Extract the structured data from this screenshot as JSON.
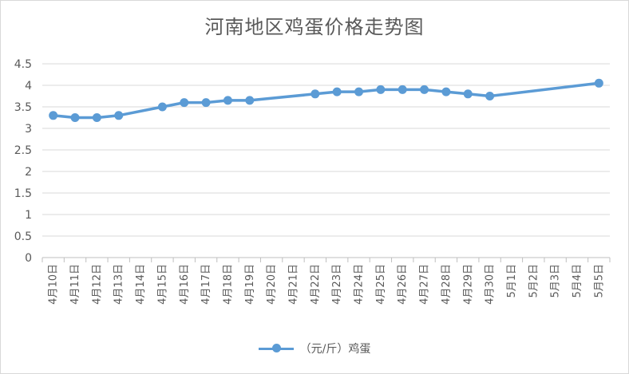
{
  "chart_data": {
    "type": "line",
    "title": "河南地区鸡蛋价格走势图",
    "categories": [
      "4月10日",
      "4月11日",
      "4月12日",
      "4月13日",
      "4月14日",
      "4月15日",
      "4月16日",
      "4月17日",
      "4月18日",
      "4月19日",
      "4月20日",
      "4月21日",
      "4月22日",
      "4月23日",
      "4月24日",
      "4月25日",
      "4月26日",
      "4月27日",
      "4月28日",
      "4月29日",
      "4月30日",
      "5月1日",
      "5月2日",
      "5月3日",
      "5月4日",
      "5月5日"
    ],
    "series": [
      {
        "name": "（元/斤）鸡蛋",
        "color": "#5b9bd5",
        "values": [
          3.3,
          3.25,
          3.25,
          3.3,
          null,
          3.5,
          3.6,
          3.6,
          3.65,
          3.65,
          null,
          null,
          3.8,
          3.85,
          3.85,
          3.9,
          3.9,
          3.9,
          3.85,
          3.8,
          3.75,
          null,
          null,
          null,
          null,
          4.05
        ]
      }
    ],
    "ylim": [
      0,
      4.5
    ],
    "yticks": [
      "0",
      "0.5",
      "1",
      "1.5",
      "2",
      "2.5",
      "3",
      "3.5",
      "4",
      "4.5"
    ],
    "gridlines": true,
    "legend_position": "bottom",
    "gaps": "connected"
  }
}
